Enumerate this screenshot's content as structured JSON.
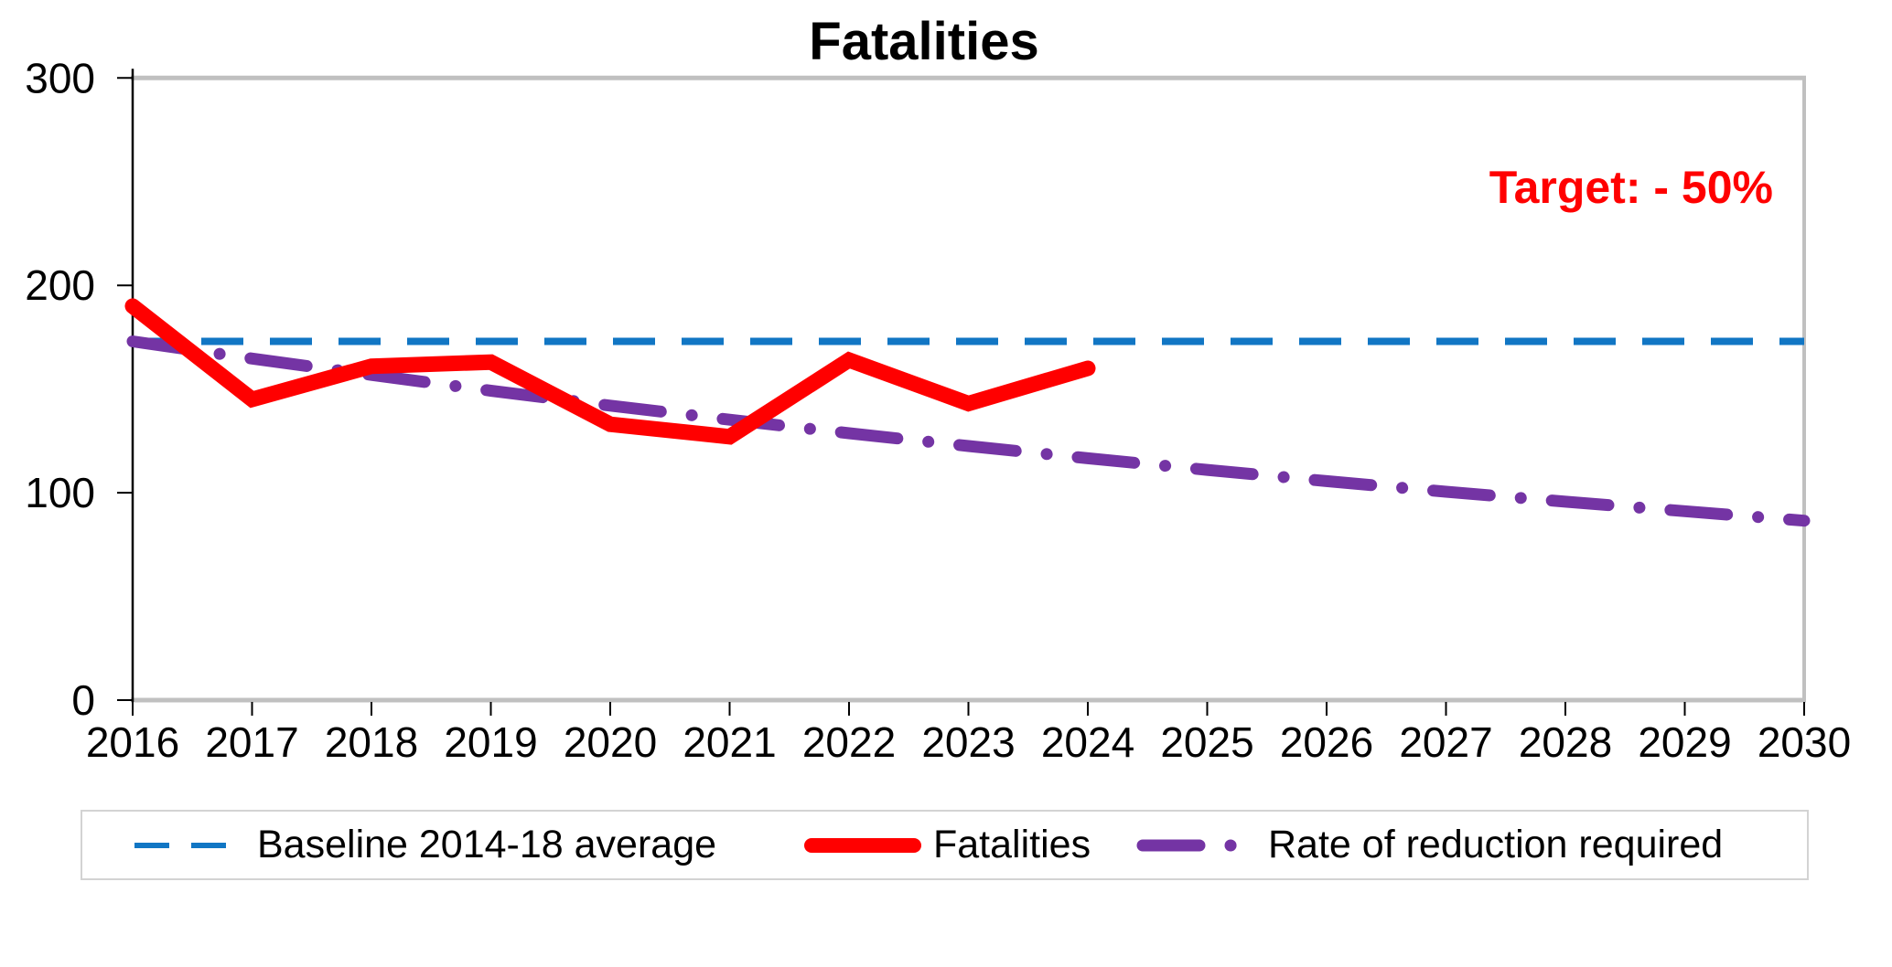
{
  "page": {
    "background": "#FFFFFF"
  },
  "chart_data": {
    "type": "line",
    "title": "Fatalities",
    "annotation": {
      "text": "Target: - 50%",
      "color": "#FF0000"
    },
    "x": [
      2016,
      2017,
      2018,
      2019,
      2020,
      2021,
      2022,
      2023,
      2024,
      2025,
      2026,
      2027,
      2028,
      2029,
      2030
    ],
    "ylim": [
      0,
      300
    ],
    "yticks": [
      0,
      100,
      200,
      300
    ],
    "grid": false,
    "legend_position": "bottom",
    "series": [
      {
        "name": "Baseline 2014-18 average",
        "color": "#1176C4",
        "style": "dashed",
        "width": 8,
        "values": [
          173,
          173,
          173,
          173,
          173,
          173,
          173,
          173,
          173,
          173,
          173,
          173,
          173,
          173,
          173
        ]
      },
      {
        "name": "Fatalities",
        "color": "#FF0000",
        "style": "solid",
        "width": 17,
        "values": [
          190,
          145,
          161,
          163,
          133,
          127,
          164,
          143,
          160,
          null,
          null,
          null,
          null,
          null,
          null
        ]
      },
      {
        "name": "Rate of reduction required",
        "color": "#7434A4",
        "style": "dash-dot",
        "width": 13,
        "values": [
          173,
          164.7,
          156.8,
          149.2,
          142.0,
          135.2,
          128.7,
          122.5,
          116.6,
          111.0,
          105.6,
          100.5,
          95.7,
          91.1,
          86.5
        ]
      }
    ],
    "axis": {
      "border_color": "#C0C0C0",
      "axis_color": "#000000",
      "label_color": "#000000"
    }
  }
}
